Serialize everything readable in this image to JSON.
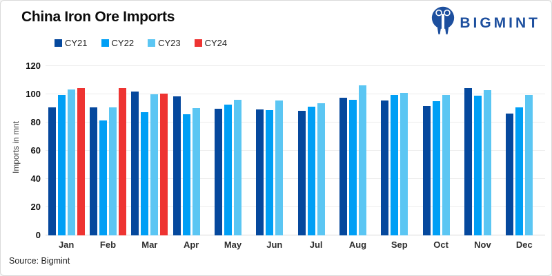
{
  "header": {
    "title": "China Iron Ore Imports",
    "brand": "BIGMINT"
  },
  "footer": {
    "source": "Source: Bigmint"
  },
  "colors": {
    "brand_blue": "#1d4f9e",
    "grid": "#ececec",
    "axis_line": "#d6d6d6"
  },
  "chart_data": {
    "type": "bar",
    "title": "China Iron Ore Imports",
    "xlabel": "",
    "ylabel": "Imports in mnt",
    "ylim": [
      0,
      120
    ],
    "yticks": [
      0,
      20,
      40,
      60,
      80,
      100,
      120
    ],
    "grid": true,
    "legend_position": "top-left",
    "categories": [
      "Jan",
      "Feb",
      "Mar",
      "Apr",
      "May",
      "Jun",
      "Jul",
      "Aug",
      "Sep",
      "Oct",
      "Nov",
      "Dec"
    ],
    "series": [
      {
        "name": "CY21",
        "color": "#05489d",
        "values": [
          90.5,
          90.5,
          102.0,
          98.5,
          89.8,
          89.4,
          88.5,
          97.5,
          95.5,
          91.5,
          104.5,
          86.3
        ]
      },
      {
        "name": "CY22",
        "color": "#009ff5",
        "values": [
          99.5,
          81.3,
          87.3,
          86.1,
          92.5,
          89.0,
          91.2,
          96.2,
          99.5,
          95.0,
          98.9,
          90.9
        ]
      },
      {
        "name": "CY23",
        "color": "#5bc6f3",
        "values": [
          103.5,
          90.5,
          100.2,
          90.4,
          96.2,
          95.5,
          93.5,
          106.4,
          101.0,
          99.4,
          102.7,
          99.3
        ]
      },
      {
        "name": "CY24",
        "color": "#ee3432",
        "values": [
          104.5,
          104.5,
          100.7,
          null,
          null,
          null,
          null,
          null,
          null,
          null,
          null,
          null
        ]
      }
    ]
  }
}
